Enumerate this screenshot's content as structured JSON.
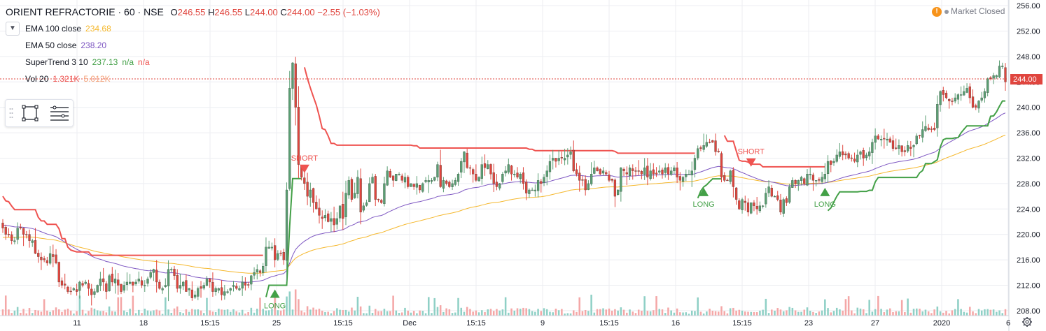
{
  "header": {
    "symbol": "ORIENT REFRACTORIE · 60 · NSE",
    "open_label": "O",
    "open": "246.55",
    "high_label": "H",
    "high": "246.55",
    "low_label": "L",
    "low": "244.00",
    "close_label": "C",
    "close": "244.00",
    "change": "−2.55 (−1.03%)"
  },
  "status": {
    "warning_glyph": "!",
    "text": "Market Closed"
  },
  "indicators": [
    {
      "name": "EMA 100 close",
      "value": "234.68",
      "color": "#f5b82e"
    },
    {
      "name": "EMA 50 close",
      "value": "238.20",
      "color": "#7e57c2"
    },
    {
      "name": "SuperTrend 3 10",
      "value": "237.13",
      "extra1": "n/a",
      "extra2": "n/a",
      "color": "#43a047",
      "color_bear": "#ef5350"
    },
    {
      "name": "Vol 20",
      "value": "1.321K",
      "extra1": "5.012K",
      "color": "#ef5350"
    }
  ],
  "icons": {
    "collapse": "chevron-down-icon",
    "drag": "drag-grip-icon",
    "rectangle": "rectangle-tool-icon",
    "settings": "format-settings-icon",
    "gear": "gear-icon"
  },
  "colors": {
    "up": "#5a9e73",
    "down": "#e0453e",
    "vol_up": "#8fd0c6",
    "vol_down": "#f4a7a7",
    "grid": "#eceef2",
    "price_line": "#e0453e"
  },
  "chart_data": {
    "type": "candlestick",
    "timeframe": "60",
    "ylim": [
      207,
      256
    ],
    "y_ticks": [
      208.0,
      212.0,
      216.0,
      220.0,
      224.0,
      228.0,
      232.0,
      236.0,
      240.0,
      244.0,
      248.0,
      252.0,
      256.0
    ],
    "last_price": 244.0,
    "x_ticks": [
      "11",
      "18",
      "15:15",
      "25",
      "15:15",
      "Dec",
      "15:15",
      "9",
      "15:15",
      "16",
      "15:15",
      "23",
      "27",
      "2020",
      "6"
    ],
    "bar_count": 336,
    "close": [
      221.0,
      220.0,
      220.0,
      219.0,
      219.0,
      221.0,
      221.0,
      220.0,
      220.0,
      219.0,
      219.0,
      217.0,
      216.5,
      216.0,
      216.0,
      215.5,
      217.0,
      216.5,
      215.5,
      212.5,
      212.0,
      212.0,
      211.0,
      211.0,
      211.5,
      211.0,
      212.5,
      212.0,
      212.5,
      211.5,
      210.5,
      211.0,
      212.0,
      213.0,
      212.5,
      211.0,
      213.5,
      212.5,
      213.0,
      212.0,
      211.0,
      212.0,
      212.5,
      212.5,
      212.0,
      212.5,
      213.0,
      212.0,
      212.0,
      213.0,
      214.0,
      214.5,
      212.5,
      211.5,
      211.5,
      212.0,
      214.5,
      214.5,
      213.5,
      211.5,
      212.0,
      212.5,
      211.0,
      211.5,
      210.0,
      210.5,
      211.5,
      211.5,
      212.0,
      213.0,
      212.5,
      211.0,
      211.5,
      211.5,
      210.5,
      211.0,
      211.0,
      211.5,
      212.0,
      211.5,
      211.5,
      212.5,
      212.0,
      212.0,
      213.5,
      214.0,
      214.5,
      214.0,
      215.0,
      218.0,
      218.0,
      218.0,
      216.0,
      217.0,
      217.0,
      216.0,
      227.0,
      243.0,
      247.0,
      240.0,
      231.0,
      229.0,
      228.0,
      226.0,
      227.0,
      225.0,
      224.0,
      223.0,
      222.5,
      223.0,
      222.0,
      222.5,
      221.5,
      222.5,
      224.5,
      222.5,
      226.5,
      228.5,
      225.5,
      226.5,
      229.0,
      223.5,
      224.5,
      225.0,
      228.0,
      229.0,
      225.5,
      225.5,
      225.0,
      228.0,
      230.0,
      229.0,
      228.5,
      229.5,
      229.5,
      228.5,
      229.0,
      227.5,
      228.0,
      227.5,
      228.0,
      227.0,
      228.0,
      228.5,
      228.5,
      228.5,
      229.0,
      231.0,
      227.5,
      228.5,
      228.0,
      227.5,
      228.0,
      228.5,
      229.5,
      231.5,
      233.0,
      230.5,
      230.5,
      229.5,
      228.5,
      229.0,
      231.0,
      230.5,
      231.0,
      229.5,
      228.0,
      227.5,
      228.0,
      229.5,
      230.0,
      231.0,
      229.5,
      229.5,
      229.0,
      229.5,
      228.0,
      226.5,
      227.0,
      227.0,
      227.0,
      228.5,
      228.0,
      229.0,
      230.0,
      231.5,
      232.0,
      231.5,
      232.0,
      232.0,
      232.0,
      232.5,
      233.0,
      230.0,
      229.5,
      228.5,
      228.5,
      227.0,
      228.0,
      229.5,
      230.5,
      230.0,
      229.5,
      230.0,
      229.5,
      228.5,
      228.5,
      226.0,
      227.0,
      230.5,
      230.0,
      229.5,
      230.5,
      230.0,
      230.0,
      230.0,
      229.5,
      230.5,
      229.0,
      230.0,
      229.5,
      229.5,
      230.0,
      229.5,
      230.5,
      229.5,
      230.0,
      230.5,
      229.0,
      228.5,
      229.0,
      229.5,
      229.5,
      230.0,
      232.0,
      233.5,
      233.5,
      234.0,
      234.5,
      234.5,
      234.5,
      233.0,
      233.0,
      229.0,
      228.5,
      228.5,
      230.0,
      227.5,
      225.5,
      224.0,
      225.5,
      225.0,
      223.5,
      225.0,
      224.5,
      224.0,
      224.5,
      224.5,
      226.5,
      227.5,
      226.0,
      226.0,
      225.5,
      223.5,
      225.5,
      225.0,
      227.5,
      228.5,
      228.0,
      228.5,
      229.0,
      228.0,
      229.5,
      229.5,
      228.5,
      228.5,
      228.5,
      229.0,
      229.5,
      231.5,
      231.0,
      231.5,
      232.5,
      233.0,
      232.5,
      232.5,
      232.0,
      232.0,
      231.5,
      232.5,
      233.0,
      232.0,
      232.5,
      233.0,
      234.5,
      235.5,
      235.0,
      235.0,
      235.0,
      235.0,
      234.5,
      233.5,
      233.5,
      234.0,
      233.0,
      233.0,
      234.0,
      233.5,
      234.0,
      235.5,
      235.5,
      236.5,
      237.0,
      236.5,
      236.5,
      236.5,
      240.5,
      242.5,
      242.0,
      241.5,
      241.0,
      241.0,
      241.5,
      242.0,
      242.0,
      242.5,
      243.0,
      241.5,
      240.0,
      240.0,
      241.0,
      241.5,
      242.5,
      244.5,
      244.5,
      245.0,
      245.0,
      246.5,
      246.5,
      244.0
    ],
    "ema100_final": 234.68,
    "ema50_final": 238.2,
    "supertrend_final": 237.13,
    "volume_last": "1.321K",
    "volume_ma": "5.012K",
    "signals": [
      {
        "label": "LONG",
        "index": 92,
        "price": 212.0,
        "dir": "up"
      },
      {
        "label": "SHORT",
        "index": 102,
        "price": 229.0,
        "dir": "down"
      },
      {
        "label": "LONG",
        "index": 237,
        "price": 228.0,
        "dir": "up"
      },
      {
        "label": "SHORT",
        "index": 253,
        "price": 230.0,
        "dir": "down"
      },
      {
        "label": "LONG",
        "index": 278,
        "price": 228.0,
        "dir": "up"
      }
    ]
  }
}
